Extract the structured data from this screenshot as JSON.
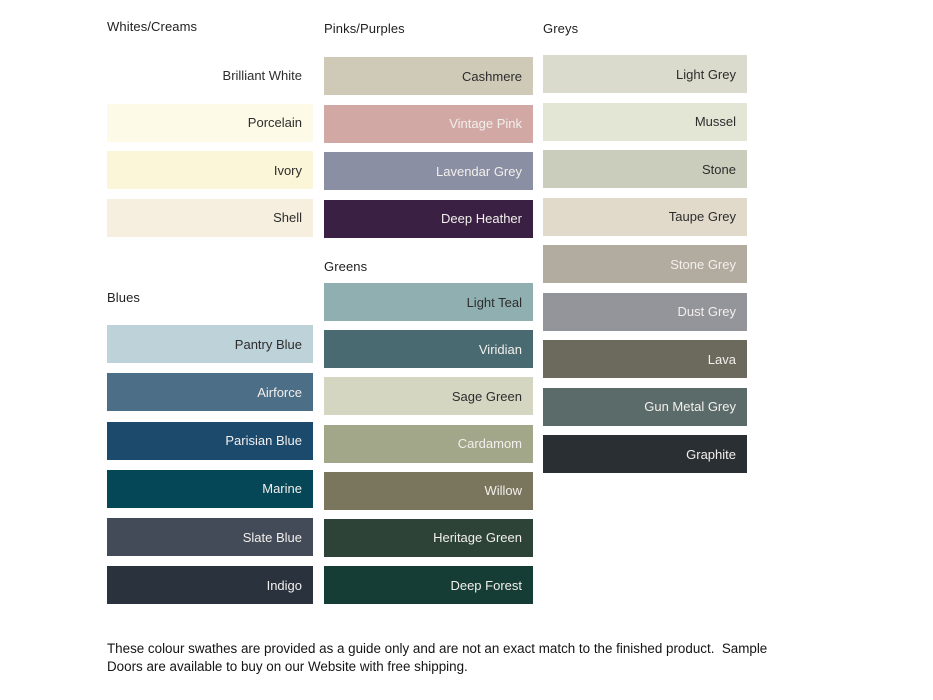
{
  "page": {
    "background": "#ffffff"
  },
  "text_colors": {
    "dark": "#2d2d2d",
    "light": "#f2efec"
  },
  "columns": [
    {
      "groups": [
        {
          "header": "Whites/Creams",
          "swatches": [
            {
              "label": "Brilliant White",
              "color": "#ffffff",
              "text": "dark"
            },
            {
              "label": "Porcelain",
              "color": "#fdfbe7",
              "text": "dark"
            },
            {
              "label": "Ivory",
              "color": "#fbf6d7",
              "text": "dark"
            },
            {
              "label": "Shell",
              "color": "#f6eedf",
              "text": "dark"
            }
          ]
        },
        {
          "header": "Blues",
          "swatches": [
            {
              "label": "Pantry Blue",
              "color": "#bdd3d9",
              "text": "dark"
            },
            {
              "label": "Airforce",
              "color": "#4c6e87",
              "text": "light"
            },
            {
              "label": "Parisian Blue",
              "color": "#1b4a6d",
              "text": "light"
            },
            {
              "label": "Marine",
              "color": "#064757",
              "text": "light"
            },
            {
              "label": "Slate Blue",
              "color": "#434b59",
              "text": "light"
            },
            {
              "label": "Indigo",
              "color": "#2a323d",
              "text": "light"
            }
          ]
        }
      ]
    },
    {
      "groups": [
        {
          "header": "Pinks/Purples",
          "swatches": [
            {
              "label": "Cashmere",
              "color": "#cfc9b7",
              "text": "dark"
            },
            {
              "label": "Vintage Pink",
              "color": "#d2a8a5",
              "text": "light"
            },
            {
              "label": "Lavendar Grey",
              "color": "#8b8fa4",
              "text": "light"
            },
            {
              "label": "Deep Heather",
              "color": "#3a2043",
              "text": "light"
            }
          ]
        },
        {
          "header": "Greens",
          "swatches": [
            {
              "label": "Light Teal",
              "color": "#90afb1",
              "text": "dark"
            },
            {
              "label": "Viridian",
              "color": "#4a6a72",
              "text": "light"
            },
            {
              "label": "Sage Green",
              "color": "#d4d6c2",
              "text": "dark"
            },
            {
              "label": "Cardamom",
              "color": "#a2a78a",
              "text": "light"
            },
            {
              "label": "Willow",
              "color": "#7a765e",
              "text": "light"
            },
            {
              "label": "Heritage Green",
              "color": "#2d4338",
              "text": "light"
            },
            {
              "label": "Deep Forest",
              "color": "#153c35",
              "text": "light"
            }
          ]
        }
      ]
    },
    {
      "groups": [
        {
          "header": "Greys",
          "swatches": [
            {
              "label": "Light Grey",
              "color": "#dadbcc",
              "text": "dark"
            },
            {
              "label": "Mussel",
              "color": "#e3e6d5",
              "text": "dark"
            },
            {
              "label": "Stone",
              "color": "#cbcdbc",
              "text": "dark"
            },
            {
              "label": "Taupe Grey",
              "color": "#e1dacb",
              "text": "dark"
            },
            {
              "label": "Stone Grey",
              "color": "#b2aca0",
              "text": "light"
            },
            {
              "label": "Dust Grey",
              "color": "#94959b",
              "text": "light"
            },
            {
              "label": "Lava",
              "color": "#6c695d",
              "text": "light"
            },
            {
              "label": "Gun Metal Grey",
              "color": "#5b6b69",
              "text": "light"
            },
            {
              "label": "Graphite",
              "color": "#2a2f33",
              "text": "light"
            }
          ]
        }
      ]
    }
  ],
  "footer": {
    "text": "These colour swathes are provided as a guide only and are not an exact match to the finished product.  Sample Doors are available to buy on our Website with free shipping."
  }
}
